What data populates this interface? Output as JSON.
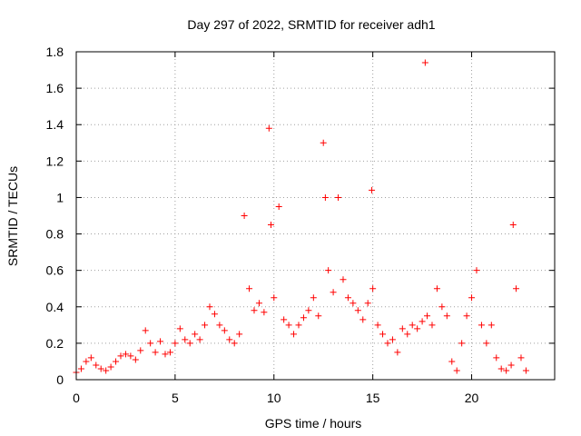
{
  "chart_data": {
    "type": "scatter",
    "title": "Day 297 of 2022, SRMTID for receiver adh1",
    "xlabel": "GPS time / hours",
    "ylabel": "SRMTID / TECUs",
    "xlim": [
      0,
      24.2
    ],
    "ylim": [
      0,
      1.8
    ],
    "xticks": [
      0,
      5,
      10,
      15,
      20
    ],
    "xtick_labels": [
      "0",
      "5",
      "10",
      "15",
      "20"
    ],
    "yticks": [
      0,
      0.2,
      0.4,
      0.6,
      0.8,
      1.0,
      1.2,
      1.4,
      1.6,
      1.8
    ],
    "ytick_labels": [
      "0",
      "0.2",
      "0.4",
      "0.6",
      "0.8",
      "1",
      "1.2",
      "1.4",
      "1.6",
      "1.8"
    ],
    "grid": true,
    "marker": "plus",
    "color": "#ff0000",
    "series": [
      {
        "name": "SRMTID",
        "x": [
          0.0,
          0.25,
          0.5,
          0.75,
          1.0,
          1.25,
          1.5,
          1.75,
          2.0,
          2.25,
          2.5,
          2.75,
          3.0,
          3.25,
          3.5,
          3.75,
          4.0,
          4.25,
          4.5,
          4.75,
          5.0,
          5.25,
          5.5,
          5.75,
          6.0,
          6.25,
          6.5,
          6.75,
          7.0,
          7.25,
          7.5,
          7.75,
          8.0,
          8.25,
          8.5,
          8.75,
          9.0,
          9.25,
          9.5,
          9.75,
          9.85,
          10.0,
          10.25,
          10.5,
          10.75,
          11.0,
          11.25,
          11.5,
          11.75,
          12.0,
          12.25,
          12.5,
          12.6,
          12.75,
          13.0,
          13.25,
          13.5,
          13.75,
          14.0,
          14.25,
          14.5,
          14.75,
          14.95,
          15.0,
          15.25,
          15.5,
          15.75,
          16.0,
          16.25,
          16.5,
          16.75,
          17.0,
          17.25,
          17.5,
          17.65,
          17.75,
          18.0,
          18.25,
          18.5,
          18.75,
          19.0,
          19.25,
          19.5,
          19.75,
          20.0,
          20.25,
          20.5,
          20.75,
          21.0,
          21.25,
          21.5,
          21.75,
          22.0,
          22.1,
          22.25,
          22.5,
          22.75
        ],
        "y": [
          0.04,
          0.06,
          0.1,
          0.12,
          0.08,
          0.06,
          0.05,
          0.07,
          0.1,
          0.13,
          0.14,
          0.13,
          0.11,
          0.16,
          0.27,
          0.2,
          0.15,
          0.21,
          0.14,
          0.15,
          0.2,
          0.28,
          0.22,
          0.2,
          0.25,
          0.22,
          0.3,
          0.4,
          0.36,
          0.3,
          0.27,
          0.22,
          0.2,
          0.25,
          0.9,
          0.5,
          0.38,
          0.42,
          0.37,
          1.38,
          0.85,
          0.45,
          0.95,
          0.33,
          0.3,
          0.25,
          0.3,
          0.34,
          0.38,
          0.45,
          0.35,
          1.3,
          1.0,
          0.6,
          0.48,
          1.0,
          0.55,
          0.45,
          0.42,
          0.38,
          0.33,
          0.42,
          1.04,
          0.5,
          0.3,
          0.25,
          0.2,
          0.22,
          0.15,
          0.28,
          0.25,
          0.3,
          0.28,
          0.32,
          1.74,
          0.35,
          0.3,
          0.5,
          0.4,
          0.35,
          0.1,
          0.05,
          0.2,
          0.35,
          0.45,
          0.6,
          0.3,
          0.2,
          0.3,
          0.12,
          0.06,
          0.05,
          0.08,
          0.85,
          0.5,
          0.12,
          0.05
        ]
      }
    ]
  }
}
